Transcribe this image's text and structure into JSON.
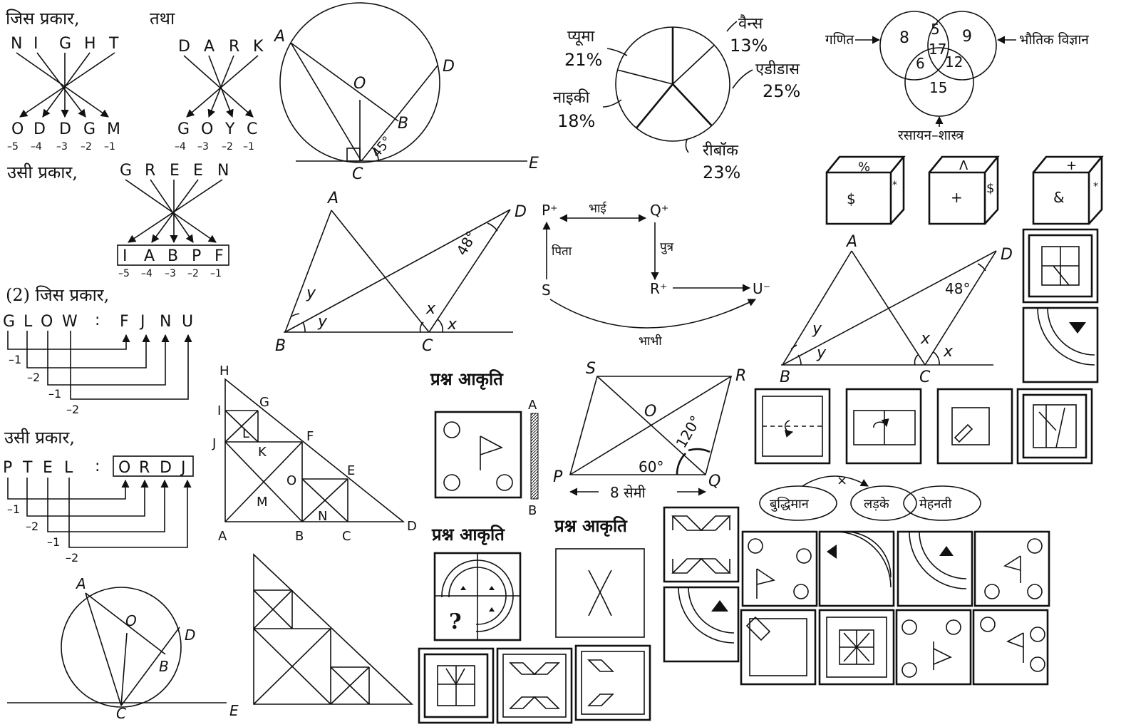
{
  "coding": {
    "eg1_prefix": "जिस प्रकार,",
    "eg1_and": "तथा",
    "night_letters": [
      "N",
      "I",
      "G",
      "H",
      "T"
    ],
    "night_code": [
      "O",
      "D",
      "D",
      "G",
      "M"
    ],
    "night_shifts": [
      "–5",
      "–4",
      "–3",
      "–2",
      "–1"
    ],
    "dark_letters": [
      "D",
      "A",
      "R",
      "K"
    ],
    "dark_code": [
      "G",
      "O",
      "Y",
      "C"
    ],
    "dark_shifts": [
      "–4",
      "–3",
      "–2",
      "–1"
    ],
    "eg1_same": "उसी प्रकार,",
    "green_letters": [
      "G",
      "R",
      "E",
      "E",
      "N"
    ],
    "green_code": [
      "I",
      "A",
      "B",
      "P",
      "F"
    ],
    "green_shifts": [
      "–5",
      "–4",
      "–3",
      "–2",
      "–1"
    ],
    "eg2_prefix": "(2) जिस प्रकार,",
    "glow_left": [
      "G",
      "L",
      "O",
      "W"
    ],
    "colon": ":",
    "glow_right": [
      "F",
      "J",
      "N",
      "U"
    ],
    "glow_shifts": [
      "–1",
      "–2",
      "–1",
      "–2"
    ],
    "eg2_same": "उसी प्रकार,",
    "ptel_left": [
      "P",
      "T",
      "E",
      "L"
    ],
    "ptel_right": [
      "O",
      "R",
      "D",
      "J"
    ],
    "ptel_shifts": [
      "–1",
      "–2",
      "–1",
      "–2"
    ]
  },
  "geometry": {
    "pts_circle1": [
      "A",
      "O",
      "D",
      "B",
      "C",
      "E"
    ],
    "angle_45": "45°",
    "pts_circle2": [
      "A",
      "O",
      "D",
      "B",
      "C",
      "E"
    ],
    "tri1_pts": [
      "A",
      "D",
      "B",
      "C"
    ],
    "angle_48": "48°",
    "y": "y",
    "x": "x",
    "tri2_pts": [
      "A",
      "D",
      "B",
      "C"
    ],
    "angle_48b": "48°",
    "bigtri_pts": [
      "H",
      "G",
      "I",
      "J",
      "L",
      "K",
      "F",
      "O",
      "E",
      "M",
      "N",
      "A",
      "B",
      "C",
      "D"
    ],
    "rhombus_pts": [
      "S",
      "R",
      "O",
      "P",
      "Q"
    ],
    "angle_120": "120°",
    "angle_60": "60°",
    "length_label": "8 सेमी"
  },
  "pie": {
    "slices": [
      {
        "label": "वैन्स",
        "value": 13
      },
      {
        "label": "एडीडास",
        "value": 25
      },
      {
        "label": "रीबॉक",
        "value": 23
      },
      {
        "label": "नाइकी",
        "value": 18
      },
      {
        "label": "प्यूमा",
        "value": 21
      }
    ],
    "pct": [
      "13%",
      "25%",
      "23%",
      "18%",
      "21%"
    ]
  },
  "venn": {
    "left_label": "गणित",
    "right_label": "भौतिक विज्ञान",
    "bottom_label": "रसायन–शास्त्र",
    "vals": [
      "8",
      "5",
      "9",
      "17",
      "6",
      "12",
      "15"
    ]
  },
  "dice": {
    "d1": [
      "%",
      "$",
      "*"
    ],
    "d2": [
      "Λ",
      "+",
      "$"
    ],
    "d3": [
      "+",
      "&",
      "*"
    ]
  },
  "family": {
    "p": "P⁺",
    "q": "Q⁺",
    "s": "S",
    "r": "R⁺",
    "u": "U⁻",
    "brother": "भाई",
    "father": "पिता",
    "son": "पुत्र",
    "sister_in_law": "भाभी"
  },
  "figures": {
    "question_figure": "प्रश्न आकृति",
    "mirror_a": "A",
    "mirror_b": "B",
    "question_mark": "?"
  },
  "syllogism": {
    "c1": "बुद्धिमान",
    "c2": "लड़के",
    "c3": "मेहनती",
    "cross": "×"
  }
}
